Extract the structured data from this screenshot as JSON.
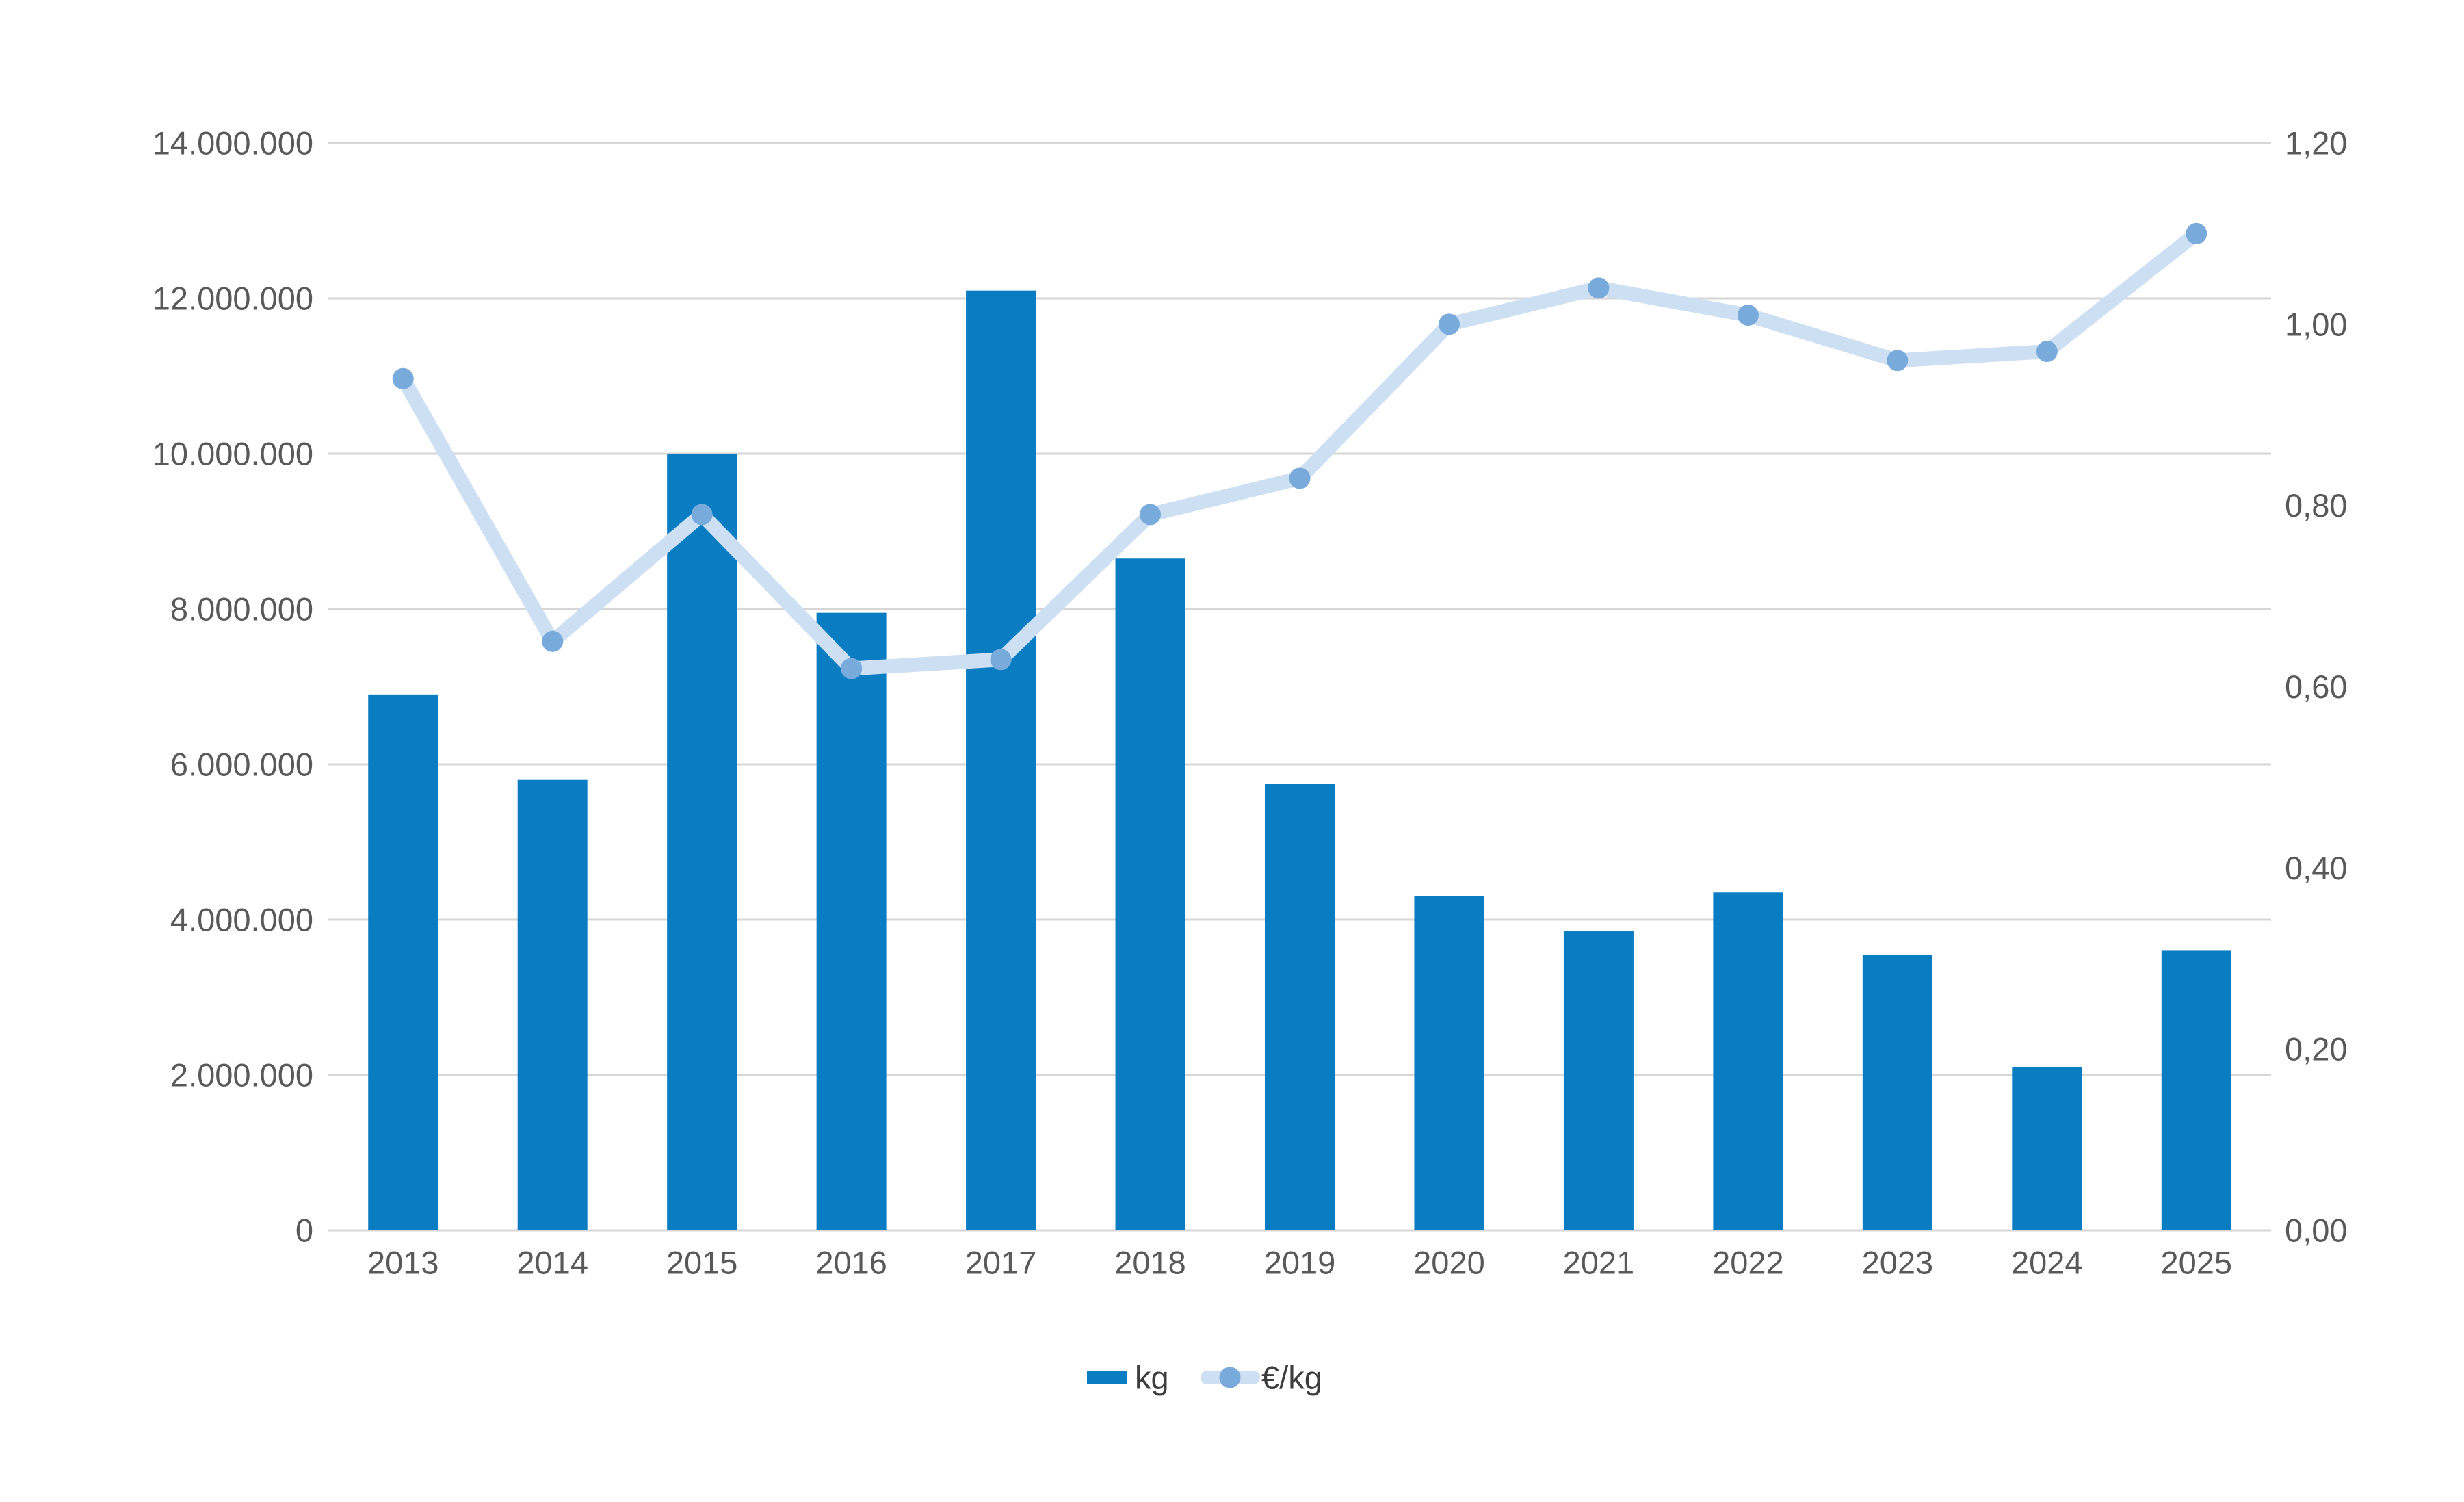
{
  "chart_data": {
    "type": "bar-line-combo",
    "title": "",
    "xlabel": "",
    "ylabel_left": "",
    "ylabel_right": "",
    "grid": true,
    "legend_position": "bottom-center",
    "categories": [
      "2013",
      "2014",
      "2015",
      "2016",
      "2017",
      "2018",
      "2019",
      "2020",
      "2021",
      "2022",
      "2023",
      "2024",
      "2025"
    ],
    "series": [
      {
        "name": "kg",
        "type": "bar",
        "axis": "left",
        "values": [
          6900000,
          5800000,
          10000000,
          7950000,
          12100000,
          8650000,
          5750000,
          4300000,
          3850000,
          4350000,
          3550000,
          2100000,
          3600000
        ]
      },
      {
        "name": "€/kg",
        "type": "line",
        "axis": "right",
        "values": [
          0.94,
          0.65,
          0.79,
          0.62,
          0.63,
          0.79,
          0.83,
          1.0,
          1.04,
          1.01,
          0.96,
          0.97,
          1.1
        ]
      }
    ],
    "left_axis": {
      "min": 0,
      "max": 14000000,
      "tick_step": 2000000,
      "ticks": [
        {
          "value": 0,
          "label": "0"
        },
        {
          "value": 2000000,
          "label": "2.000.000"
        },
        {
          "value": 4000000,
          "label": "4.000.000"
        },
        {
          "value": 6000000,
          "label": "6.000.000"
        },
        {
          "value": 8000000,
          "label": "8.000.000"
        },
        {
          "value": 10000000,
          "label": "10.000.000"
        },
        {
          "value": 12000000,
          "label": "12.000.000"
        },
        {
          "value": 14000000,
          "label": "14.000.000"
        }
      ]
    },
    "right_axis": {
      "min": 0,
      "max": 1.2,
      "tick_step": 0.2,
      "ticks": [
        {
          "value": 0.0,
          "label": "0,00"
        },
        {
          "value": 0.2,
          "label": "0,20"
        },
        {
          "value": 0.4,
          "label": "0,40"
        },
        {
          "value": 0.6,
          "label": "0,60"
        },
        {
          "value": 0.8,
          "label": "0,80"
        },
        {
          "value": 1.0,
          "label": "1,00"
        },
        {
          "value": 1.2,
          "label": "1,20"
        }
      ]
    },
    "legend": [
      {
        "label": "kg",
        "swatch": "bar"
      },
      {
        "label": "€/kg",
        "swatch": "line-dot"
      }
    ]
  },
  "colors": {
    "bar": "#0a7dc2",
    "line": "#cddff2",
    "marker": "#79aadc",
    "grid": "#d6d6d6",
    "text": "#595959",
    "background": "#ffffff"
  }
}
